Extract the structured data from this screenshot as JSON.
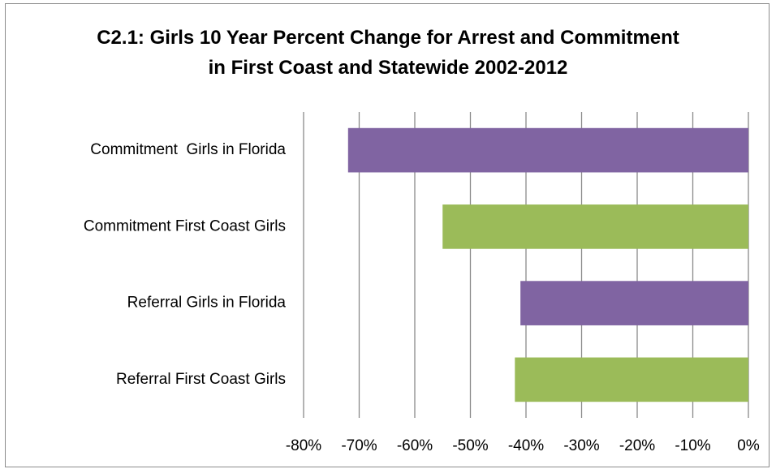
{
  "chart_data": {
    "type": "bar",
    "orientation": "horizontal",
    "title": "C2.1: Girls 10 Year Percent Change for Arrest and Commitment in First Coast and Statewide 2002-2012",
    "categories": [
      "Commitment  Girls in Florida",
      "Commitment First Coast Girls",
      "Referral Girls in Florida",
      "Referral First Coast Girls"
    ],
    "values": [
      -72,
      -55,
      -41,
      -42
    ],
    "colors": [
      "#8064a2",
      "#9bbb59",
      "#8064a2",
      "#9bbb59"
    ],
    "xlim": [
      -80,
      0
    ],
    "xticks": [
      {
        "value": -80,
        "label": "-80%"
      },
      {
        "value": -70,
        "label": "-70%"
      },
      {
        "value": -60,
        "label": "-60%"
      },
      {
        "value": -50,
        "label": "-50%"
      },
      {
        "value": -40,
        "label": "-40%"
      },
      {
        "value": -30,
        "label": "-30%"
      },
      {
        "value": -20,
        "label": "-20%"
      },
      {
        "value": -10,
        "label": "-10%"
      },
      {
        "value": 0,
        "label": "0%"
      }
    ],
    "grid": true
  }
}
